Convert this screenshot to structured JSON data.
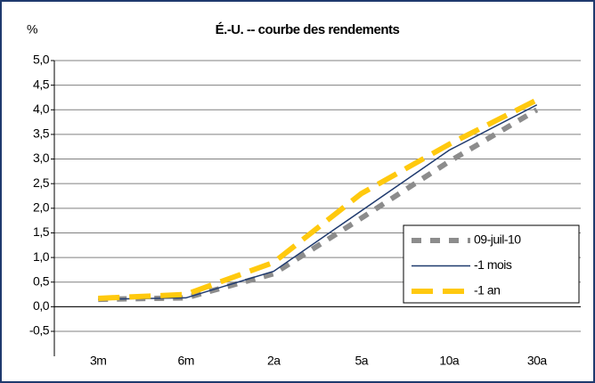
{
  "chart_data": {
    "type": "line",
    "title": "É.-U. -- courbe des rendements",
    "y_label": "%",
    "categories": [
      "3m",
      "6m",
      "2a",
      "5a",
      "10a",
      "30a"
    ],
    "series": [
      {
        "name": "09-juil-10",
        "color": "#8c8c8c",
        "line_style": "dotted",
        "values": [
          0.15,
          0.18,
          0.67,
          1.8,
          2.95,
          4.0
        ]
      },
      {
        "name": "-1 mois",
        "color": "#1f3a6e",
        "line_style": "solid",
        "values": [
          0.15,
          0.18,
          0.72,
          1.95,
          3.18,
          4.1
        ]
      },
      {
        "name": "-1 an",
        "color": "#ffc90e",
        "line_style": "dashed",
        "values": [
          0.17,
          0.25,
          0.9,
          2.3,
          3.3,
          4.2
        ]
      }
    ],
    "ylim": [
      -0.5,
      5.0
    ],
    "yticks": [
      {
        "value": -0.5,
        "label": "-0,5"
      },
      {
        "value": 0,
        "label": "0,0"
      },
      {
        "value": 0.5,
        "label": "0,5"
      },
      {
        "value": 1.0,
        "label": "1,0"
      },
      {
        "value": 1.5,
        "label": "1,5"
      },
      {
        "value": 2.0,
        "label": "2,0"
      },
      {
        "value": 2.5,
        "label": "2,5"
      },
      {
        "value": 3.0,
        "label": "3,0"
      },
      {
        "value": 3.5,
        "label": "3,5"
      },
      {
        "value": 4.0,
        "label": "4,0"
      },
      {
        "value": 4.5,
        "label": "4,5"
      },
      {
        "value": 5.0,
        "label": "5,0"
      }
    ],
    "grid": true,
    "legend": "lower-right"
  }
}
